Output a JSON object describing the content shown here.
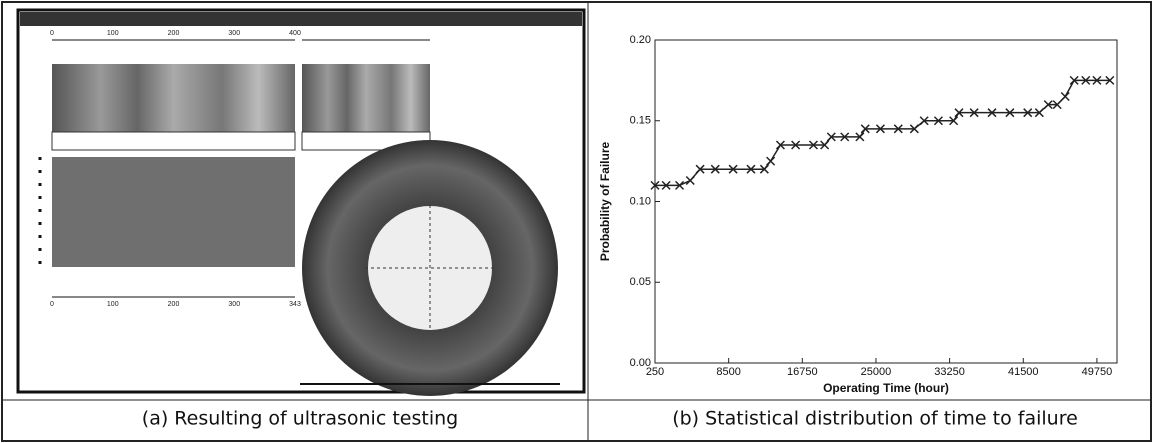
{
  "figure": {
    "panel_a": {
      "caption": "(a) Resulting of ultrasonic testing",
      "top_axis_labels": [
        "0",
        "100",
        "200",
        "300",
        "400"
      ],
      "bottom_axis_labels": [
        "0",
        "100",
        "200",
        "300",
        "343"
      ]
    },
    "panel_b": {
      "caption": "(b) Statistical distribution of time to failure"
    }
  },
  "chart_data": {
    "type": "line",
    "x_label": "Operating Time (hour)",
    "y_label": "Probability of Failure",
    "x": [
      250,
      1500,
      3000,
      4200,
      5300,
      7000,
      9000,
      11000,
      12500,
      13200,
      14300,
      16000,
      18000,
      19250,
      20000,
      21500,
      23200,
      23800,
      25500,
      27500,
      29300,
      30400,
      32000,
      33700,
      34300,
      36000,
      38000,
      40000,
      42000,
      43300,
      44300,
      45300,
      46200,
      47200,
      48500,
      49750,
      51200
    ],
    "values": [
      0.11,
      0.11,
      0.11,
      0.113,
      0.12,
      0.12,
      0.12,
      0.12,
      0.12,
      0.125,
      0.135,
      0.135,
      0.135,
      0.135,
      0.14,
      0.14,
      0.14,
      0.145,
      0.145,
      0.145,
      0.145,
      0.15,
      0.15,
      0.15,
      0.155,
      0.155,
      0.155,
      0.155,
      0.155,
      0.155,
      0.16,
      0.16,
      0.165,
      0.175,
      0.175,
      0.175,
      0.175
    ],
    "color": "#222222",
    "marker": "x",
    "xlim": [
      250,
      52000
    ],
    "xticks": [
      250,
      8500,
      16750,
      25000,
      33250,
      41500,
      49750
    ],
    "ylim": [
      0,
      0.2
    ],
    "yticks": [
      {
        "value": 0,
        "label": "0.00"
      },
      0.05,
      {
        "value": 0.1,
        "label": "0.10"
      },
      0.15,
      {
        "value": 0.2,
        "label": "0.20"
      }
    ]
  }
}
